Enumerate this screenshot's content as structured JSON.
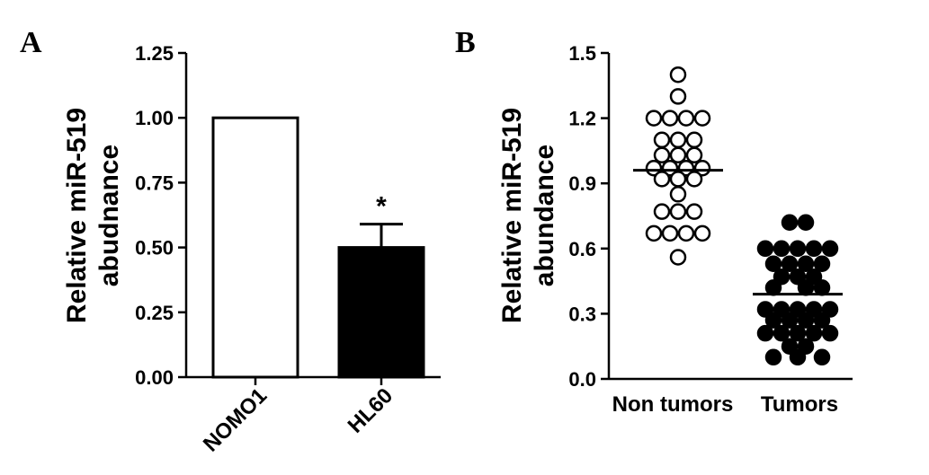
{
  "chart_data": [
    {
      "panel": "A",
      "type": "bar",
      "ylabel_lines": [
        "Relative miR-519",
        "abudnance"
      ],
      "categories": [
        "NOMO1",
        "HL60"
      ],
      "values": [
        1.0,
        0.5
      ],
      "errors": [
        0,
        0.09
      ],
      "bar_fill": [
        "#ffffff",
        "#000000"
      ],
      "annotations": [
        {
          "category": "HL60",
          "text": "*"
        }
      ],
      "ylim": [
        0,
        1.25
      ],
      "yticks": [
        "0.00",
        "0.25",
        "0.50",
        "0.75",
        "1.00",
        "1.25"
      ]
    },
    {
      "panel": "B",
      "type": "scatter",
      "ylabel_lines": [
        "Relative miR-519",
        "abundance"
      ],
      "categories": [
        "Non tumors",
        "Tumors"
      ],
      "ylim": [
        0,
        1.5
      ],
      "yticks": [
        "0.0",
        "0.3",
        "0.6",
        "0.9",
        "1.2",
        "1.5"
      ],
      "series": [
        {
          "category": "Non tumors",
          "marker": "open-circle",
          "mean": 0.96,
          "points": [
            {
              "x": 0,
              "y": 1.4
            },
            {
              "x": 0,
              "y": 1.3
            },
            {
              "x": -1.5,
              "y": 1.2
            },
            {
              "x": -0.5,
              "y": 1.2
            },
            {
              "x": 0.5,
              "y": 1.2
            },
            {
              "x": 1.5,
              "y": 1.2
            },
            {
              "x": -1,
              "y": 1.1
            },
            {
              "x": 0,
              "y": 1.1
            },
            {
              "x": 1,
              "y": 1.1
            },
            {
              "x": -1,
              "y": 1.03
            },
            {
              "x": 0,
              "y": 1.03
            },
            {
              "x": 1,
              "y": 1.03
            },
            {
              "x": -1.5,
              "y": 0.97
            },
            {
              "x": -0.5,
              "y": 0.97
            },
            {
              "x": 0.5,
              "y": 0.97
            },
            {
              "x": 1.5,
              "y": 0.97
            },
            {
              "x": -1,
              "y": 0.92
            },
            {
              "x": 0,
              "y": 0.92
            },
            {
              "x": 1,
              "y": 0.92
            },
            {
              "x": 0,
              "y": 0.85
            },
            {
              "x": -1,
              "y": 0.77
            },
            {
              "x": 0,
              "y": 0.77
            },
            {
              "x": 1,
              "y": 0.77
            },
            {
              "x": -1.5,
              "y": 0.67
            },
            {
              "x": -0.5,
              "y": 0.67
            },
            {
              "x": 0.5,
              "y": 0.67
            },
            {
              "x": 1.5,
              "y": 0.67
            },
            {
              "x": 0,
              "y": 0.56
            }
          ]
        },
        {
          "category": "Tumors",
          "marker": "filled-circle",
          "mean": 0.39,
          "points": [
            {
              "x": -0.5,
              "y": 0.72
            },
            {
              "x": 0.5,
              "y": 0.72
            },
            {
              "x": -2,
              "y": 0.6
            },
            {
              "x": -1,
              "y": 0.6
            },
            {
              "x": 0,
              "y": 0.6
            },
            {
              "x": 1,
              "y": 0.6
            },
            {
              "x": 2,
              "y": 0.6
            },
            {
              "x": -1.5,
              "y": 0.53
            },
            {
              "x": -0.5,
              "y": 0.53
            },
            {
              "x": 0.5,
              "y": 0.53
            },
            {
              "x": 1.5,
              "y": 0.53
            },
            {
              "x": -1,
              "y": 0.47
            },
            {
              "x": 0,
              "y": 0.47
            },
            {
              "x": 1,
              "y": 0.47
            },
            {
              "x": -1.5,
              "y": 0.42
            },
            {
              "x": 0.5,
              "y": 0.42
            },
            {
              "x": 1.5,
              "y": 0.42
            },
            {
              "x": -2,
              "y": 0.32
            },
            {
              "x": -1,
              "y": 0.32
            },
            {
              "x": 0,
              "y": 0.32
            },
            {
              "x": 1,
              "y": 0.32
            },
            {
              "x": 2,
              "y": 0.32
            },
            {
              "x": -1.5,
              "y": 0.27
            },
            {
              "x": -0.5,
              "y": 0.27
            },
            {
              "x": 0.5,
              "y": 0.27
            },
            {
              "x": 1.5,
              "y": 0.27
            },
            {
              "x": -2,
              "y": 0.21
            },
            {
              "x": -1,
              "y": 0.21
            },
            {
              "x": 0,
              "y": 0.21
            },
            {
              "x": 1,
              "y": 0.21
            },
            {
              "x": 2,
              "y": 0.21
            },
            {
              "x": -0.5,
              "y": 0.15
            },
            {
              "x": 0.5,
              "y": 0.15
            },
            {
              "x": -1.5,
              "y": 0.1
            },
            {
              "x": 0,
              "y": 0.1
            },
            {
              "x": 1.5,
              "y": 0.1
            }
          ]
        }
      ]
    }
  ],
  "panels": {
    "a_label": "A",
    "b_label": "B"
  }
}
